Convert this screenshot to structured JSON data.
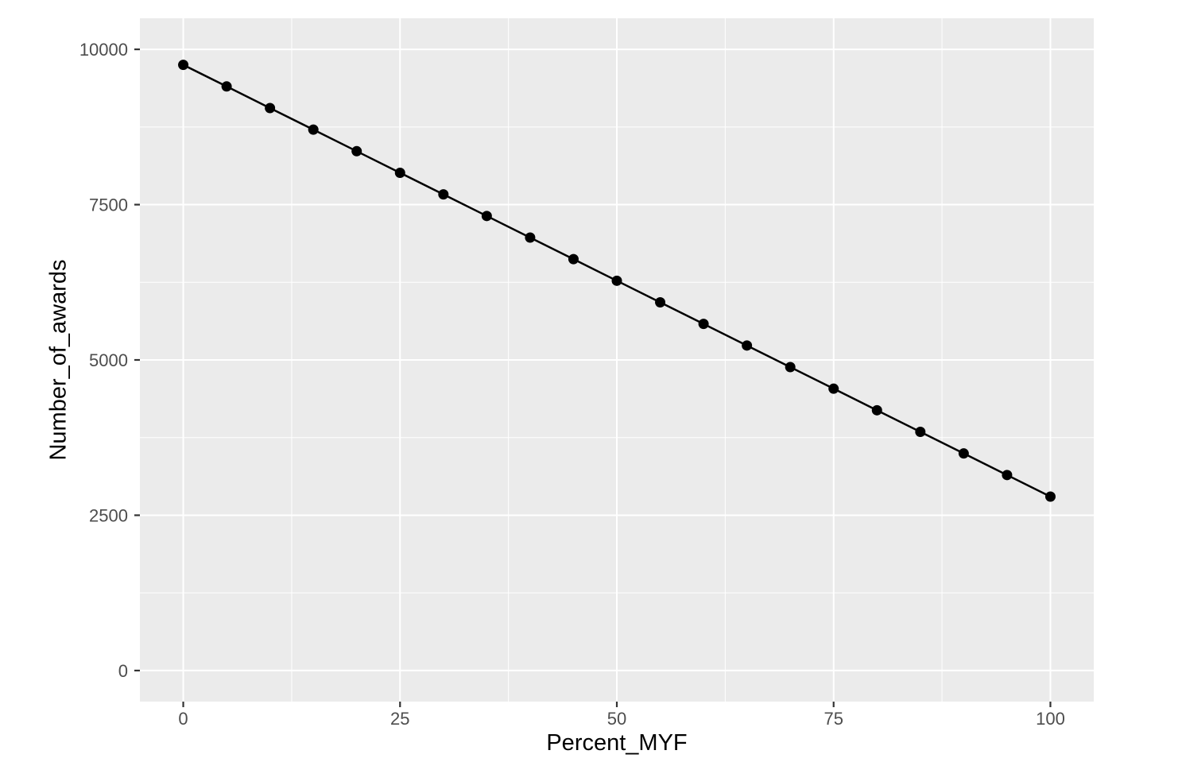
{
  "chart_data": {
    "type": "line",
    "title": "",
    "xlabel": "Percent_MYF",
    "ylabel": "Number_of_awards",
    "x": [
      0,
      5,
      10,
      15,
      20,
      25,
      30,
      35,
      40,
      45,
      50,
      55,
      60,
      65,
      70,
      75,
      80,
      85,
      90,
      95,
      100
    ],
    "y": [
      9750,
      9402.5,
      9055,
      8707.5,
      8360,
      8012.5,
      7665,
      7317.5,
      6970,
      6622.5,
      6275,
      5927.5,
      5580,
      5232.5,
      4885,
      4537.5,
      4190,
      3842.5,
      3495,
      3147.5,
      2800
    ],
    "x_ticks": [
      0,
      25,
      50,
      75,
      100
    ],
    "x_tick_labels": [
      "0",
      "25",
      "50",
      "75",
      "100"
    ],
    "y_ticks": [
      0,
      2500,
      5000,
      7500,
      10000
    ],
    "y_tick_labels": [
      "0",
      "2500",
      "5000",
      "7500",
      "10000"
    ],
    "x_minor_gridlines": [
      12.5,
      37.5,
      62.5,
      87.5
    ],
    "y_minor_gridlines": [
      1250,
      3750,
      6250,
      8750
    ],
    "xlim": [
      -5,
      105
    ],
    "ylim": [
      -500,
      10500
    ],
    "grid": "major-and-minor",
    "legend": "none",
    "marker": "filled-circle",
    "colors": {
      "panel_background": "#EBEBEB",
      "gridline": "#FFFFFF",
      "line": "#000000",
      "point": "#000000",
      "tick_mark": "#333333",
      "tick_label": "#4D4D4D",
      "axis_title": "#000000",
      "figure_background": "#FFFFFF"
    }
  }
}
